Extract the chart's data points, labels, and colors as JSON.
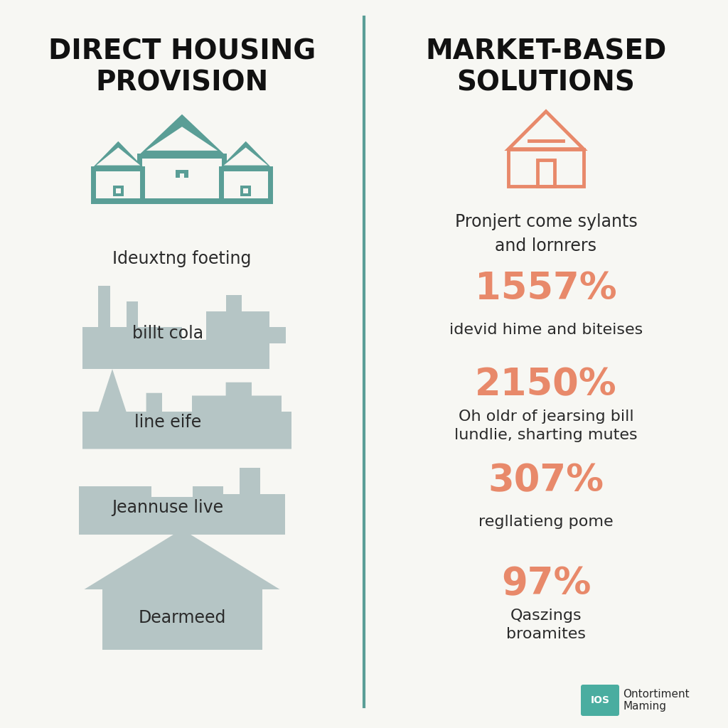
{
  "bg_color": "#f7f7f3",
  "left_title": "DIRECT HOUSING\nPROVISION",
  "right_title": "MARKET-BASED\nSOLUTIONS",
  "title_color": "#111111",
  "divider_color": "#5a9e96",
  "icon_teal": "#5a9e96",
  "icon_gray": "#b5c5c5",
  "icon_salmon": "#e8896a",
  "stat_color": "#e8896a",
  "label_color": "#2a2a2a",
  "footer_text": "Ontortiment\nMaming",
  "footer_icon_color": "#5a9e96",
  "footer_bg": "#4aada0",
  "footer_text_color": "#ffffff",
  "left_items": [
    {
      "label": "Ideuxtng foeting"
    },
    {
      "label": "billt cola"
    },
    {
      "label": "line eife"
    },
    {
      "label": "Jeannuse live"
    },
    {
      "label": "Dearmeed"
    }
  ],
  "right_item0_label": "Pronjert come sylants\nand lornrers",
  "right_stats": [
    "1557%",
    "2150%",
    "307%",
    "97%"
  ],
  "right_labels": [
    "idevid hime and biteises",
    "Oh oldr of jearsing bill\nlundlie, sharting mutes",
    "regllatieng pome",
    "Qaszings\nbroamites"
  ]
}
